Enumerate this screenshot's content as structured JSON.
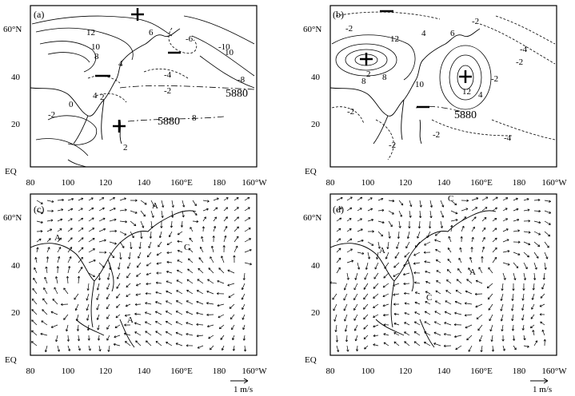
{
  "figure": {
    "panels": [
      {
        "id": "a",
        "label": "(a)",
        "contour_labels": [
          "12",
          "10",
          "8",
          "6",
          "4",
          "2",
          "0",
          "-2",
          "-4",
          "-6",
          "-8",
          "-10",
          "10",
          "4",
          "8",
          "2",
          "-2",
          "4",
          "0",
          "-2"
        ],
        "ridge_label_1": "5880",
        "ridge_label_2": "5880"
      },
      {
        "id": "b",
        "label": "(b)",
        "contour_labels": [
          "-2",
          "-2",
          "12",
          "6",
          "-4",
          "-2",
          "4",
          "2",
          "-2",
          "10",
          "8",
          "-2",
          "-2",
          "-4",
          "12",
          "8",
          "4",
          "-2",
          "-4",
          "-2"
        ],
        "ridge_label_1": "5880"
      },
      {
        "id": "c",
        "label": "(c)",
        "center_labels": [
          "A",
          "A",
          "C",
          "A",
          "C",
          "A"
        ]
      },
      {
        "id": "d",
        "label": "(d)",
        "center_labels": [
          "C",
          "A",
          "A",
          "C"
        ]
      }
    ],
    "x_tick_labels": [
      "80",
      "100",
      "120",
      "140",
      "160°E",
      "180",
      "160°W"
    ],
    "y_tick_labels": [
      "60°N",
      "40",
      "20",
      "EQ"
    ],
    "reference_vector_label": "1 m/s"
  }
}
